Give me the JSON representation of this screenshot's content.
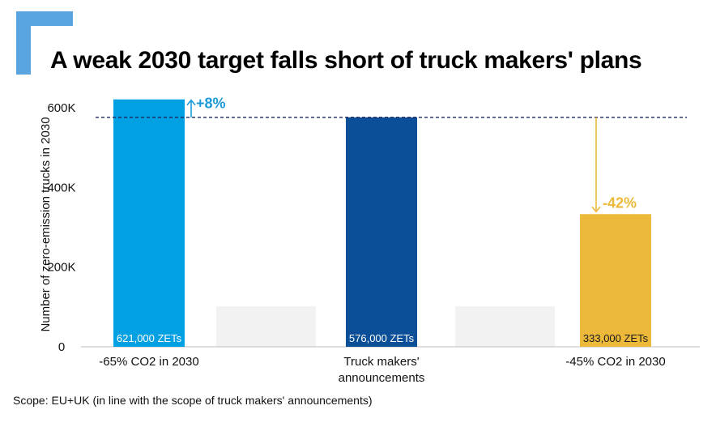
{
  "title": "A weak 2030 target falls short of truck makers' plans",
  "footnote": "Scope: EU+UK (in line with the scope of truck makers' announcements)",
  "colors": {
    "logo": "#5aa4e0",
    "reference_line": "#1f2a5e",
    "placeholder_bar": "#f2f2f2"
  },
  "chart_data": {
    "type": "bar",
    "title": "A weak 2030 target falls short of truck makers' plans",
    "ylabel": "Number of zero-emission trucks in 2030",
    "xlabel": "",
    "ylim": [
      0,
      600000
    ],
    "yticks": [
      {
        "value": 0,
        "label": "0"
      },
      {
        "value": 200000,
        "label": "200K"
      },
      {
        "value": 400000,
        "label": "400K"
      },
      {
        "value": 600000,
        "label": "600K"
      }
    ],
    "grid": false,
    "categories": [
      {
        "lines": [
          "-65% CO2 in 2030"
        ]
      },
      {
        "lines": [
          "Truck makers'",
          "announcements"
        ]
      },
      {
        "lines": [
          "-45% CO2 in 2030"
        ]
      }
    ],
    "values": [
      621000,
      576000,
      333000
    ],
    "bar_labels": [
      "621,000 ZETs",
      "576,000 ZETs",
      "333,000 ZETs"
    ],
    "bar_colors": [
      "#00a0e3",
      "#0a4f97",
      "#ecb93a"
    ],
    "bar_label_colors": [
      "#ffffff",
      "#ffffff",
      "#1a1a1a"
    ],
    "reference_line": {
      "value": 576000,
      "style": "dashed"
    },
    "annotations": [
      {
        "text": "+8%",
        "bar_index": 0,
        "direction": "up",
        "color": "#1b9ad9"
      },
      {
        "text": "-42%",
        "bar_index": 2,
        "direction": "down",
        "color": "#ecb93a"
      }
    ]
  }
}
